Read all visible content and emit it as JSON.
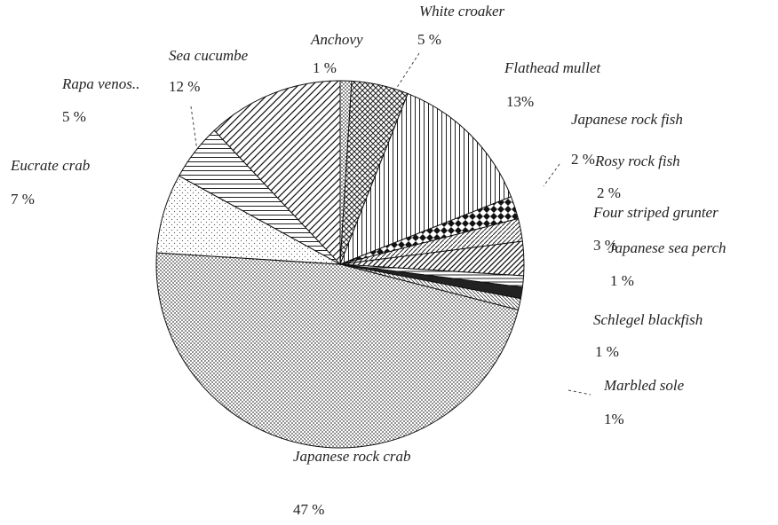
{
  "chart_data": {
    "type": "pie",
    "categories": [
      "Anchovy",
      "White croaker",
      "Flathead mullet",
      "Japanese rock fish",
      "Rosy rock fish",
      "Four striped grunter",
      "Japanese sea perch",
      "Schlegel blackfish",
      "Marbled sole",
      "Japanese rock crab",
      "Eucrate crab",
      "Rapa venos..",
      "Sea cucumbe"
    ],
    "values": [
      1,
      5,
      13,
      2,
      2,
      3,
      1,
      1,
      1,
      47,
      7,
      5,
      12
    ],
    "value_labels": [
      "1 %",
      "5 %",
      "13%",
      "2 %",
      "2 %",
      "3 %",
      "1 %",
      "1 %",
      "1%",
      "47 %",
      "7 %",
      "5 %",
      "12 %"
    ]
  }
}
